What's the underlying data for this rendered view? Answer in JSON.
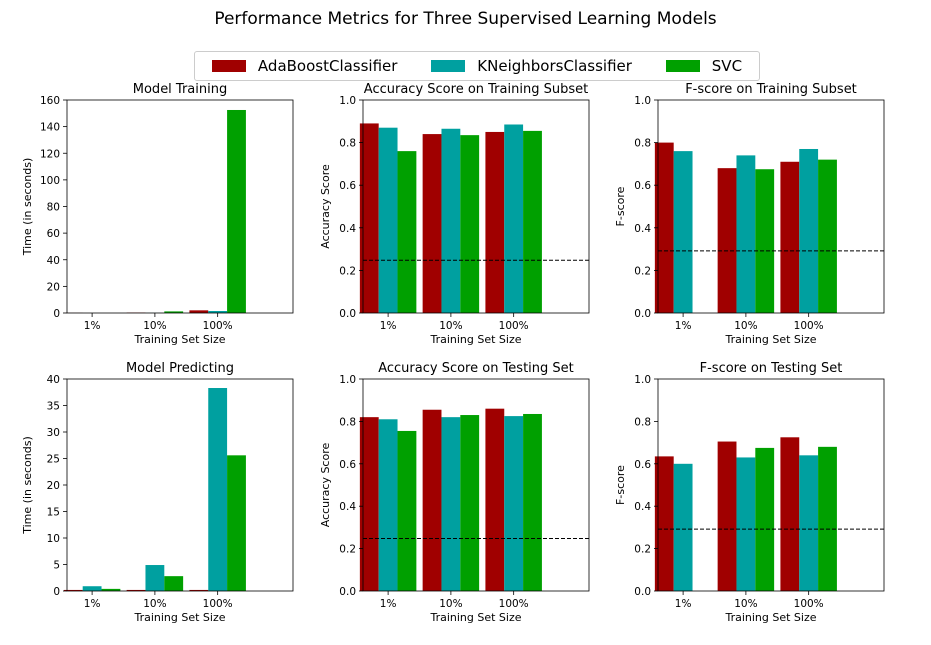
{
  "suptitle": "Performance Metrics for Three Supervised Learning Models",
  "legend": [
    {
      "name": "AdaBoostClassifier",
      "color": "#a00000"
    },
    {
      "name": "KNeighborsClassifier",
      "color": "#00a0a0"
    },
    {
      "name": "SVC",
      "color": "#00a000"
    }
  ],
  "chart_data": [
    {
      "type": "bar",
      "title": "Model Training",
      "xlabel": "Training Set Size",
      "ylabel": "Time (in seconds)",
      "categories": [
        "1%",
        "10%",
        "100%"
      ],
      "ylim": [
        0,
        160
      ],
      "yticks": [
        "0",
        "20",
        "40",
        "60",
        "80",
        "100",
        "120",
        "140",
        "160"
      ],
      "series": [
        {
          "name": "AdaBoostClassifier",
          "values": [
            0.1,
            0.3,
            2.0
          ]
        },
        {
          "name": "KNeighborsClassifier",
          "values": [
            0.0,
            0.1,
            1.5
          ]
        },
        {
          "name": "SVC",
          "values": [
            0.0,
            1.2,
            152.5
          ]
        }
      ]
    },
    {
      "type": "bar",
      "title": "Accuracy Score on Training Subset",
      "xlabel": "Training Set Size",
      "ylabel": "Accuracy Score",
      "categories": [
        "1%",
        "10%",
        "100%"
      ],
      "ylim": [
        0,
        1.0
      ],
      "yticks": [
        "0.0",
        "0.2",
        "0.4",
        "0.6",
        "0.8",
        "1.0"
      ],
      "hline": 0.2478,
      "series": [
        {
          "name": "AdaBoostClassifier",
          "values": [
            0.89,
            0.84,
            0.85
          ]
        },
        {
          "name": "KNeighborsClassifier",
          "values": [
            0.87,
            0.865,
            0.885
          ]
        },
        {
          "name": "SVC",
          "values": [
            0.76,
            0.835,
            0.855
          ]
        }
      ]
    },
    {
      "type": "bar",
      "title": "F-score on Training Subset",
      "xlabel": "Training Set Size",
      "ylabel": "F-score",
      "categories": [
        "1%",
        "10%",
        "100%"
      ],
      "ylim": [
        0,
        1.0
      ],
      "yticks": [
        "0.0",
        "0.2",
        "0.4",
        "0.6",
        "0.8",
        "1.0"
      ],
      "hline": 0.2917,
      "series": [
        {
          "name": "AdaBoostClassifier",
          "values": [
            0.8,
            0.68,
            0.71
          ]
        },
        {
          "name": "KNeighborsClassifier",
          "values": [
            0.76,
            0.74,
            0.77
          ]
        },
        {
          "name": "SVC",
          "values": [
            0.0,
            0.675,
            0.72
          ]
        }
      ]
    },
    {
      "type": "bar",
      "title": "Model Predicting",
      "xlabel": "Training Set Size",
      "ylabel": "Time (in seconds)",
      "categories": [
        "1%",
        "10%",
        "100%"
      ],
      "ylim": [
        0,
        40
      ],
      "yticks": [
        "0",
        "5",
        "10",
        "15",
        "20",
        "25",
        "30",
        "35",
        "40"
      ],
      "series": [
        {
          "name": "AdaBoostClassifier",
          "values": [
            0.2,
            0.2,
            0.2
          ]
        },
        {
          "name": "KNeighborsClassifier",
          "values": [
            0.9,
            4.9,
            38.3
          ]
        },
        {
          "name": "SVC",
          "values": [
            0.4,
            2.8,
            25.6
          ]
        }
      ]
    },
    {
      "type": "bar",
      "title": "Accuracy Score on Testing Set",
      "xlabel": "Training Set Size",
      "ylabel": "Accuracy Score",
      "categories": [
        "1%",
        "10%",
        "100%"
      ],
      "ylim": [
        0,
        1.0
      ],
      "yticks": [
        "0.0",
        "0.2",
        "0.4",
        "0.6",
        "0.8",
        "1.0"
      ],
      "hline": 0.2478,
      "series": [
        {
          "name": "AdaBoostClassifier",
          "values": [
            0.82,
            0.855,
            0.86
          ]
        },
        {
          "name": "KNeighborsClassifier",
          "values": [
            0.81,
            0.82,
            0.825
          ]
        },
        {
          "name": "SVC",
          "values": [
            0.755,
            0.83,
            0.835
          ]
        }
      ]
    },
    {
      "type": "bar",
      "title": "F-score on Testing Set",
      "xlabel": "Training Set Size",
      "ylabel": "F-score",
      "categories": [
        "1%",
        "10%",
        "100%"
      ],
      "ylim": [
        0,
        1.0
      ],
      "yticks": [
        "0.0",
        "0.2",
        "0.4",
        "0.6",
        "0.8",
        "1.0"
      ],
      "hline": 0.2917,
      "series": [
        {
          "name": "AdaBoostClassifier",
          "values": [
            0.635,
            0.705,
            0.725
          ]
        },
        {
          "name": "KNeighborsClassifier",
          "values": [
            0.6,
            0.63,
            0.64
          ]
        },
        {
          "name": "SVC",
          "values": [
            0.0,
            0.675,
            0.68
          ]
        }
      ]
    }
  ]
}
